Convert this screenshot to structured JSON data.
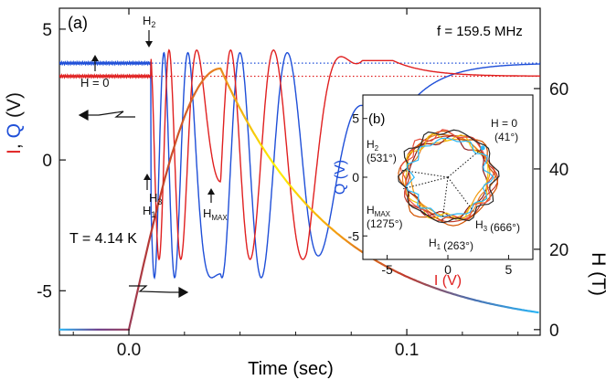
{
  "chart_data": [
    {
      "panel": "(a)",
      "type": "line",
      "xlabel": "Time (sec)",
      "xlim": [
        -0.025,
        0.148
      ],
      "xticks": [
        "0.0",
        "0.1"
      ],
      "xtick_values": [
        0.0,
        0.1
      ],
      "ylabel_left": {
        "I": "I",
        "sep": ",",
        "Q": "Q",
        "unit": "(V)"
      },
      "ylim_left": [
        -6.7,
        5.8
      ],
      "yticks_left": [
        "5",
        "0",
        "-5"
      ],
      "ytick_left_values": [
        5,
        0,
        -5
      ],
      "ylabel_right": "H (T)",
      "ylim_right": [
        -1.4,
        80
      ],
      "yticks_right": [
        "60",
        "40",
        "20",
        "0"
      ],
      "ytick_right_values": [
        60,
        40,
        20,
        0
      ],
      "annotations": {
        "freq": "f = 159.5 MHz",
        "temp": "T = 4.14 K",
        "h0": "H = 0",
        "h2": {
          "base": "H",
          "sub": "2"
        },
        "h3": {
          "base": "H",
          "sub": "3"
        },
        "h1": {
          "base": "H",
          "sub": "1"
        },
        "hmax": {
          "base": "H",
          "sub": "MAX"
        }
      },
      "colors": {
        "I": "#e02020",
        "Q": "#1f4fd8",
        "H_low": "#29b6f6",
        "H_mid": "#c0392b",
        "H_high": "#fff200"
      },
      "field_pulse": {
        "t_start": 0.0,
        "t_peak": 0.033,
        "H_peak": 65,
        "decay": "exponential, ~0.04 s"
      },
      "series": [
        {
          "name": "I",
          "baseline_V": 3.2,
          "oscillation_window_s": [
            0.009,
            0.064
          ],
          "min_V": -4.6
        },
        {
          "name": "Q",
          "baseline_V": 3.7,
          "oscillation_window_s": [
            0.009,
            0.064
          ],
          "min_V": -4.7
        }
      ]
    },
    {
      "panel": "(b)",
      "type": "scatter",
      "xlabel": "I (V)",
      "ylabel": "Q (V)",
      "xlim": [
        -7,
        7
      ],
      "ylim": [
        -7,
        7
      ],
      "xticks": [
        "-5",
        "0",
        "5"
      ],
      "xtick_values": [
        -5,
        0,
        5
      ],
      "yticks": [
        "5",
        "0",
        "-5"
      ],
      "ytick_values": [
        5,
        0,
        -5
      ],
      "points": [
        {
          "label": "H = 0",
          "sub_label": "(41°)",
          "phase_deg": 41
        },
        {
          "label": "H2",
          "display": {
            "base": "H",
            "sub": "2"
          },
          "sub_label": "(531°)",
          "phase_deg": 531
        },
        {
          "label": "HMAX",
          "display": {
            "base": "H",
            "sub": "MAX"
          },
          "sub_label": "(1275°)",
          "phase_deg": 1275
        },
        {
          "label": "H1",
          "display": {
            "base": "H",
            "sub": "1"
          },
          "sub_label": "(263°)",
          "phase_deg": 263
        },
        {
          "label": "H3",
          "display": {
            "base": "H",
            "sub": "3"
          },
          "sub_label": "(666°)",
          "phase_deg": 666
        }
      ],
      "circle_radius_V": 3.8
    }
  ]
}
